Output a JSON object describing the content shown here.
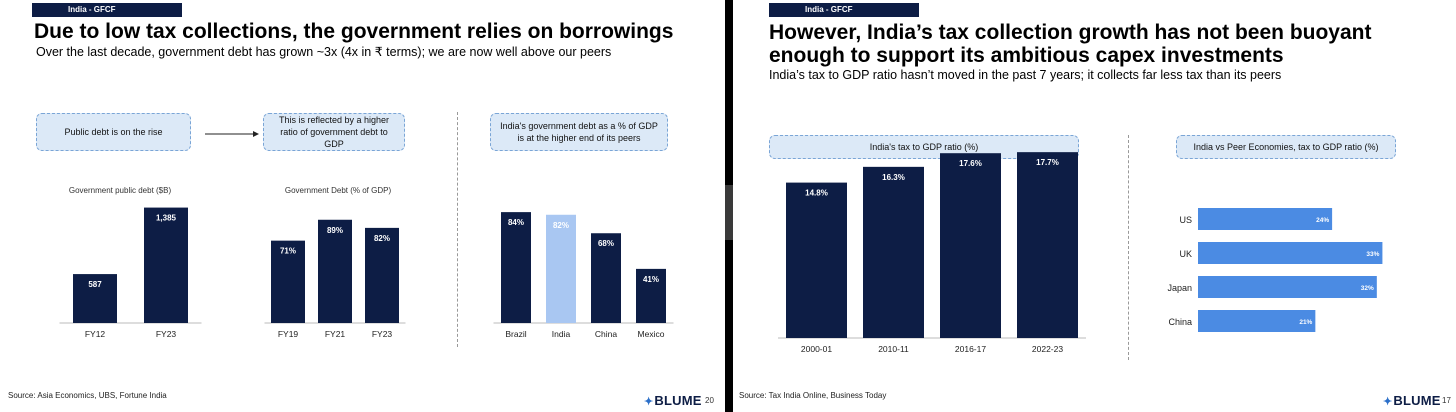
{
  "left_slide": {
    "tag": "India - GFCF",
    "title": "Due to low tax collections, the government relies on borrowings",
    "subtitle": "Over the last decade, government debt has grown ~3x (4x in ₹ terms); we are now well above our peers",
    "callouts": {
      "c1": "Public debt is on the rise",
      "c2": "This is reflected by a higher ratio of government debt to GDP",
      "c3": "India's government debt as a % of GDP is at the higher end of its peers"
    },
    "source": "Source: Asia Economics, UBS, Fortune India",
    "logo": "BLUME",
    "page": "20"
  },
  "right_slide": {
    "tag": "India - GFCF",
    "title_line1": "However, India’s tax collection growth has not been buoyant",
    "title_line2": "enough to support its ambitious capex investments",
    "subtitle": "India’s tax to GDP ratio hasn’t moved in the past 7 years; it collects far less tax than its peers",
    "callouts": {
      "c1": "India's tax to GDP ratio (%)",
      "c2": "India vs Peer Economies, tax to GDP ratio (%)"
    },
    "source": "Source: Tax India Online, Business Today",
    "logo": "BLUME",
    "page": "17"
  },
  "colors": {
    "navy": "#0d1d45",
    "light_blue": "#a9c7f2",
    "hbar_blue": "#4b8be3"
  },
  "chart_data": [
    {
      "type": "bar",
      "title": "Government public debt ($B)",
      "categories": [
        "FY12",
        "FY23"
      ],
      "values": [
        587,
        1385
      ],
      "labels": [
        "587",
        "1,385"
      ],
      "ylim": [
        0,
        1500
      ]
    },
    {
      "type": "bar",
      "title": "Government Debt (% of GDP)",
      "categories": [
        "FY19",
        "FY21",
        "FY23"
      ],
      "values": [
        71,
        89,
        82
      ],
      "labels": [
        "71%",
        "89%",
        "82%"
      ],
      "ylim": [
        0,
        100
      ]
    },
    {
      "type": "bar",
      "title": "",
      "categories": [
        "Brazil",
        "India",
        "China",
        "Mexico"
      ],
      "values": [
        84,
        82,
        68,
        41
      ],
      "labels": [
        "84%",
        "82%",
        "68%",
        "41%"
      ],
      "highlight": "India",
      "ylim": [
        0,
        100
      ]
    },
    {
      "type": "bar",
      "title": "",
      "categories": [
        "2000-01",
        "2010-11",
        "2016-17",
        "2022-23"
      ],
      "values": [
        14.8,
        16.3,
        17.6,
        17.7
      ],
      "labels": [
        "14.8%",
        "16.3%",
        "17.6%",
        "17.7%"
      ],
      "ylim": [
        0,
        18
      ]
    },
    {
      "type": "bar",
      "orientation": "horizontal",
      "title": "",
      "categories": [
        "US",
        "UK",
        "Japan",
        "China"
      ],
      "values": [
        24,
        33,
        32,
        21
      ],
      "labels": [
        "24%",
        "33%",
        "32%",
        "21%"
      ],
      "xlim": [
        0,
        34
      ]
    }
  ]
}
